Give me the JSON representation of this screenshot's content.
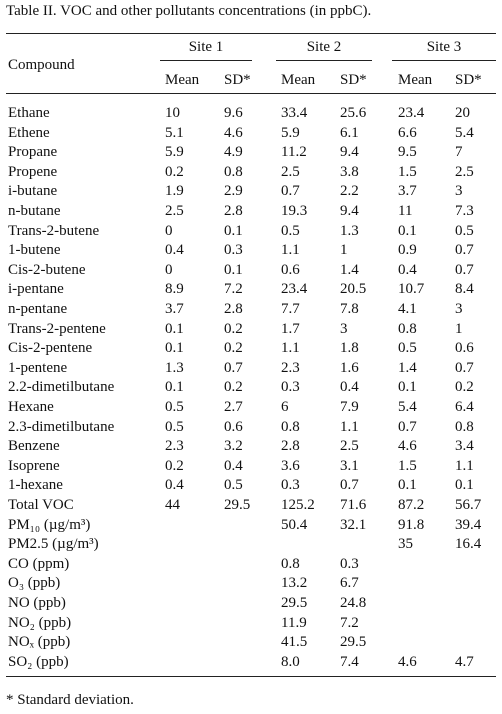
{
  "title": "Table II. VOC and other pollutants concentrations (in ppbC).",
  "table": {
    "compound_header": "Compound",
    "sites": [
      {
        "name": "Site 1",
        "columns": [
          "Mean",
          "SD*"
        ]
      },
      {
        "name": "Site 2",
        "columns": [
          "Mean",
          "SD*"
        ]
      },
      {
        "name": "Site 3",
        "columns": [
          "Mean",
          "SD*"
        ]
      }
    ],
    "rows": [
      [
        "Ethane",
        "10",
        "9.6",
        "33.4",
        "25.6",
        "23.4",
        "20"
      ],
      [
        "Ethene",
        "5.1",
        "4.6",
        "5.9",
        "6.1",
        "6.6",
        "5.4"
      ],
      [
        "Propane",
        "5.9",
        "4.9",
        "11.2",
        "9.4",
        "9.5",
        "7"
      ],
      [
        "Propene",
        "0.2",
        "0.8",
        "2.5",
        "3.8",
        "1.5",
        "2.5"
      ],
      [
        "i-butane",
        "1.9",
        "2.9",
        "0.7",
        "2.2",
        "3.7",
        "3"
      ],
      [
        "n-butane",
        "2.5",
        "2.8",
        "19.3",
        "9.4",
        "11",
        "7.3"
      ],
      [
        "Trans-2-butene",
        "0",
        "0.1",
        "0.5",
        "1.3",
        "0.1",
        "0.5"
      ],
      [
        "1-butene",
        "0.4",
        "0.3",
        "1.1",
        "1",
        "0.9",
        "0.7"
      ],
      [
        "Cis-2-butene",
        "0",
        "0.1",
        "0.6",
        "1.4",
        "0.4",
        "0.7"
      ],
      [
        "i-pentane",
        "8.9",
        "7.2",
        "23.4",
        "20.5",
        "10.7",
        "8.4"
      ],
      [
        "n-pentane",
        "3.7",
        "2.8",
        "7.7",
        "7.8",
        "4.1",
        "3"
      ],
      [
        "Trans-2-pentene",
        "0.1",
        "0.2",
        "1.7",
        "3",
        "0.8",
        "1"
      ],
      [
        "Cis-2-pentene",
        "0.1",
        "0.2",
        "1.1",
        "1.8",
        "0.5",
        "0.6"
      ],
      [
        "1-pentene",
        "1.3",
        "0.7",
        "2.3",
        "1.6",
        "1.4",
        "0.7"
      ],
      [
        "2.2-dimetilbutane",
        "0.1",
        "0.2",
        "0.3",
        "0.4",
        "0.1",
        "0.2"
      ],
      [
        "Hexane",
        "0.5",
        "2.7",
        "6",
        "7.9",
        "5.4",
        "6.4"
      ],
      [
        "2.3-dimetilbutane",
        "0.5",
        "0.6",
        "0.8",
        "1.1",
        "0.7",
        "0.8"
      ],
      [
        "Benzene",
        "2.3",
        "3.2",
        "2.8",
        "2.5",
        "4.6",
        "3.4"
      ],
      [
        "Isoprene",
        "0.2",
        "0.4",
        "3.6",
        "3.1",
        "1.5",
        "1.1"
      ],
      [
        "1-hexane",
        "0.4",
        "0.5",
        "0.3",
        "0.7",
        "0.1",
        "0.1"
      ],
      [
        "Total VOC",
        "44",
        "29.5",
        "125.2",
        "71.6",
        "87.2",
        "56.7"
      ],
      [
        "PM₁₀ (µg/m³)",
        null,
        null,
        "50.4",
        "32.1",
        "91.8",
        "39.4"
      ],
      [
        "PM2.5 (µg/m³)",
        null,
        null,
        null,
        null,
        "35",
        "16.4"
      ],
      [
        "CO (ppm)",
        null,
        null,
        "0.8",
        "0.3",
        null,
        null
      ],
      [
        "O₃ (ppb)",
        null,
        null,
        "13.2",
        "6.7",
        null,
        null
      ],
      [
        "NO (ppb)",
        null,
        null,
        "29.5",
        "24.8",
        null,
        null
      ],
      [
        "NO₂ (ppb)",
        null,
        null,
        "11.9",
        "7.2",
        null,
        null
      ],
      [
        "NOₓ (ppb)",
        null,
        null,
        "41.5",
        "29.5",
        null,
        null
      ],
      [
        "SO₂ (ppb)",
        null,
        null,
        "8.0",
        "7.4",
        "4.6",
        "4.7"
      ]
    ]
  },
  "footnote": "* Standard deviation."
}
